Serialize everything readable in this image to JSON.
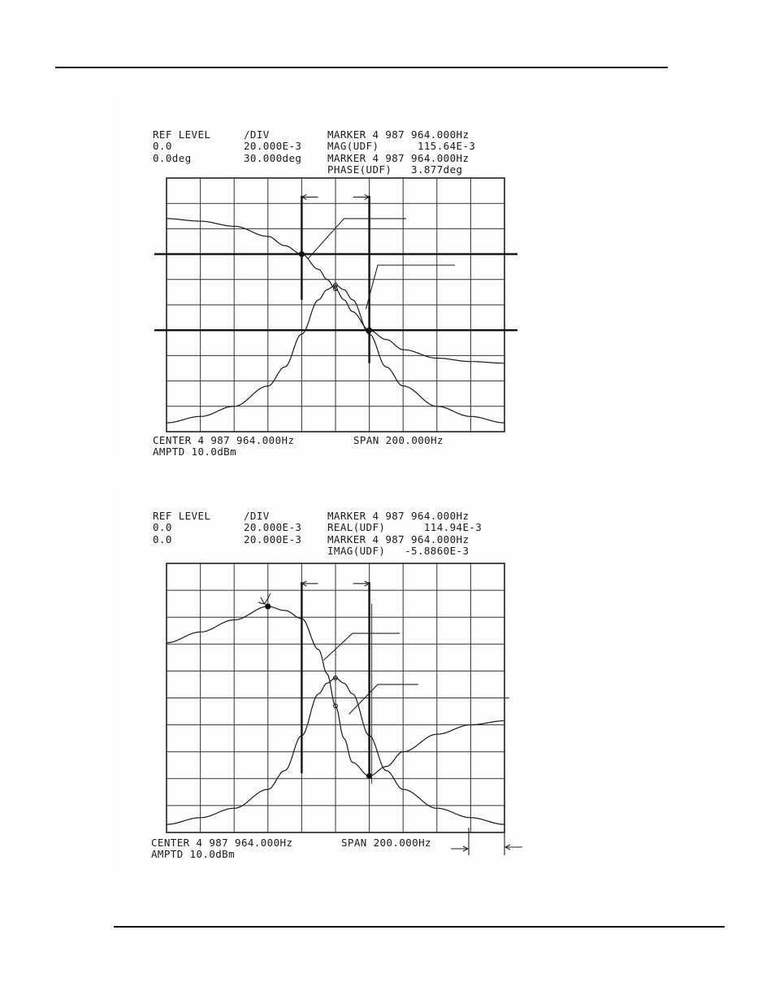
{
  "chart_data": [
    {
      "type": "line",
      "header": {
        "ref_level_label": "REF LEVEL",
        "div_label": "/DIV",
        "ref_level_1": "0.0",
        "div_1": "20.000E-3",
        "ref_level_2": "0.0deg",
        "div_2": "30.000deg",
        "marker_line_1": "MARKER 4 987 964.000Hz",
        "marker_val_1": "MAG(UDF)      115.64E-3",
        "marker_line_2": "MARKER 4 987 964.000Hz",
        "marker_val_2": "PHASE(UDF)   3.877deg"
      },
      "footer": {
        "center": "CENTER 4 987 964.000Hz",
        "span": "SPAN 200.000Hz",
        "amptd": "AMPTD 10.0dBm"
      },
      "center_hz": 4987964.0,
      "span_hz": 200.0,
      "xlim": [
        4987864.0,
        4988064.0
      ],
      "series": [
        {
          "role": "magnitude",
          "y_per_div": 0.02,
          "ylim": [
            0,
            0.2
          ],
          "x_offset_hz": [
            -100,
            -80,
            -60,
            -40,
            -30,
            -20,
            -10,
            -5,
            0,
            5,
            10,
            20,
            30,
            40,
            60,
            80,
            100
          ],
          "values": [
            0.007,
            0.012,
            0.02,
            0.036,
            0.051,
            0.077,
            0.104,
            0.112,
            0.1156,
            0.112,
            0.104,
            0.077,
            0.051,
            0.036,
            0.02,
            0.012,
            0.007
          ]
        },
        {
          "role": "phase",
          "y_per_div": "30.000deg",
          "ylim": [
            -165,
            135
          ],
          "x_offset_hz": [
            -100,
            -80,
            -60,
            -40,
            -30,
            -20,
            -10,
            -5,
            0,
            5,
            10,
            20,
            30,
            40,
            60,
            80,
            100
          ],
          "values": [
            87,
            84,
            78,
            66,
            55,
            45,
            27,
            15,
            3.9,
            -9,
            -23,
            -45,
            -56,
            -68,
            -78,
            -82,
            -84
          ]
        }
      ],
      "markers": [
        {
          "x_offset_hz": 0,
          "label": "MARKER 4 987 964.000Hz"
        }
      ],
      "cursor_offsets_hz": [
        -20,
        20
      ],
      "reference_levels_deg": [
        45,
        -45
      ]
    },
    {
      "type": "line",
      "header": {
        "ref_level_label": "REF LEVEL",
        "div_label": "/DIV",
        "ref_level_1": "0.0",
        "div_1": "20.000E-3",
        "ref_level_2": "0.0",
        "div_2": "20.000E-3",
        "marker_line_1": "MARKER 4 987 964.000Hz",
        "marker_val_1": "REAL(UDF)      114.94E-3",
        "marker_line_2": "MARKER 4 987 964.000Hz",
        "marker_val_2": "IMAG(UDF)   -5.8860E-3"
      },
      "footer": {
        "center": "CENTER 4 987 964.000Hz",
        "span": "SPAN 200.000Hz",
        "amptd": "AMPTD 10.0dBm"
      },
      "center_hz": 4987964.0,
      "span_hz": 200.0,
      "xlim": [
        4987864.0,
        4988064.0
      ],
      "series": [
        {
          "role": "real",
          "y_per_div": 0.02,
          "ylim": [
            0,
            0.2
          ],
          "x_offset_hz": [
            -100,
            -80,
            -60,
            -40,
            -30,
            -20,
            -10,
            -5,
            0,
            5,
            10,
            20,
            30,
            40,
            60,
            80,
            100
          ],
          "values": [
            0.006,
            0.011,
            0.018,
            0.032,
            0.046,
            0.072,
            0.103,
            0.111,
            0.1149,
            0.111,
            0.103,
            0.072,
            0.046,
            0.032,
            0.018,
            0.011,
            0.006
          ]
        },
        {
          "role": "imaginary",
          "y_per_div": 0.02,
          "ylim": [
            -0.1,
            0.1
          ],
          "x_offset_hz": [
            -100,
            -80,
            -60,
            -40,
            -30,
            -20,
            -10,
            -5,
            0,
            5,
            10,
            20,
            30,
            40,
            60,
            80,
            100
          ],
          "values": [
            0.041,
            0.049,
            0.058,
            0.068,
            0.065,
            0.059,
            0.036,
            0.018,
            -0.0059,
            -0.03,
            -0.048,
            -0.058,
            -0.051,
            -0.04,
            -0.027,
            -0.02,
            -0.017
          ]
        }
      ],
      "markers": [
        {
          "x_offset_hz": 0,
          "label": "MARKER 4 987 964.000Hz"
        }
      ],
      "cursor_offsets_hz": [
        -20,
        20
      ]
    }
  ]
}
